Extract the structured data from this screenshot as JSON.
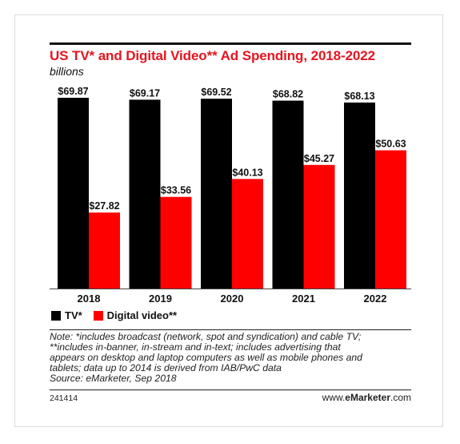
{
  "chart_data": {
    "type": "bar",
    "title": "US TV* and Digital Video** Ad Spending, 2018-2022",
    "subtitle": "billions",
    "categories": [
      "2018",
      "2019",
      "2020",
      "2021",
      "2022"
    ],
    "series": [
      {
        "name": "TV*",
        "values": [
          69.87,
          69.17,
          69.52,
          68.82,
          68.13
        ],
        "labels": [
          "$69.87",
          "$69.17",
          "$69.52",
          "$68.82",
          "$68.13"
        ],
        "color": "#000000"
      },
      {
        "name": "Digital video**",
        "values": [
          27.82,
          33.56,
          40.13,
          45.27,
          50.63
        ],
        "labels": [
          "$27.82",
          "$33.56",
          "$40.13",
          "$45.27",
          "$50.63"
        ],
        "color": "#ff0000"
      }
    ],
    "ylim": [
      0,
      69.87
    ],
    "grid": false,
    "legend": "bottom-left"
  },
  "colors": {
    "title": "#e4151f",
    "tv": "#000000",
    "digital": "#ff0000"
  },
  "note_lines": [
    "Note: *includes broadcast (network, spot and syndication) and cable TV;",
    "**includes in-banner, in-stream and in-text; includes advertising that",
    "appears on desktop and laptop computers as well as mobile phones and",
    "tablets; data up to 2014 is derived from IAB/PwC data",
    "Source: eMarketer, Sep 2018"
  ],
  "chart_id": "241414",
  "brand": {
    "prefix": "www.",
    "name": "eMarketer",
    "suffix": ".com"
  }
}
